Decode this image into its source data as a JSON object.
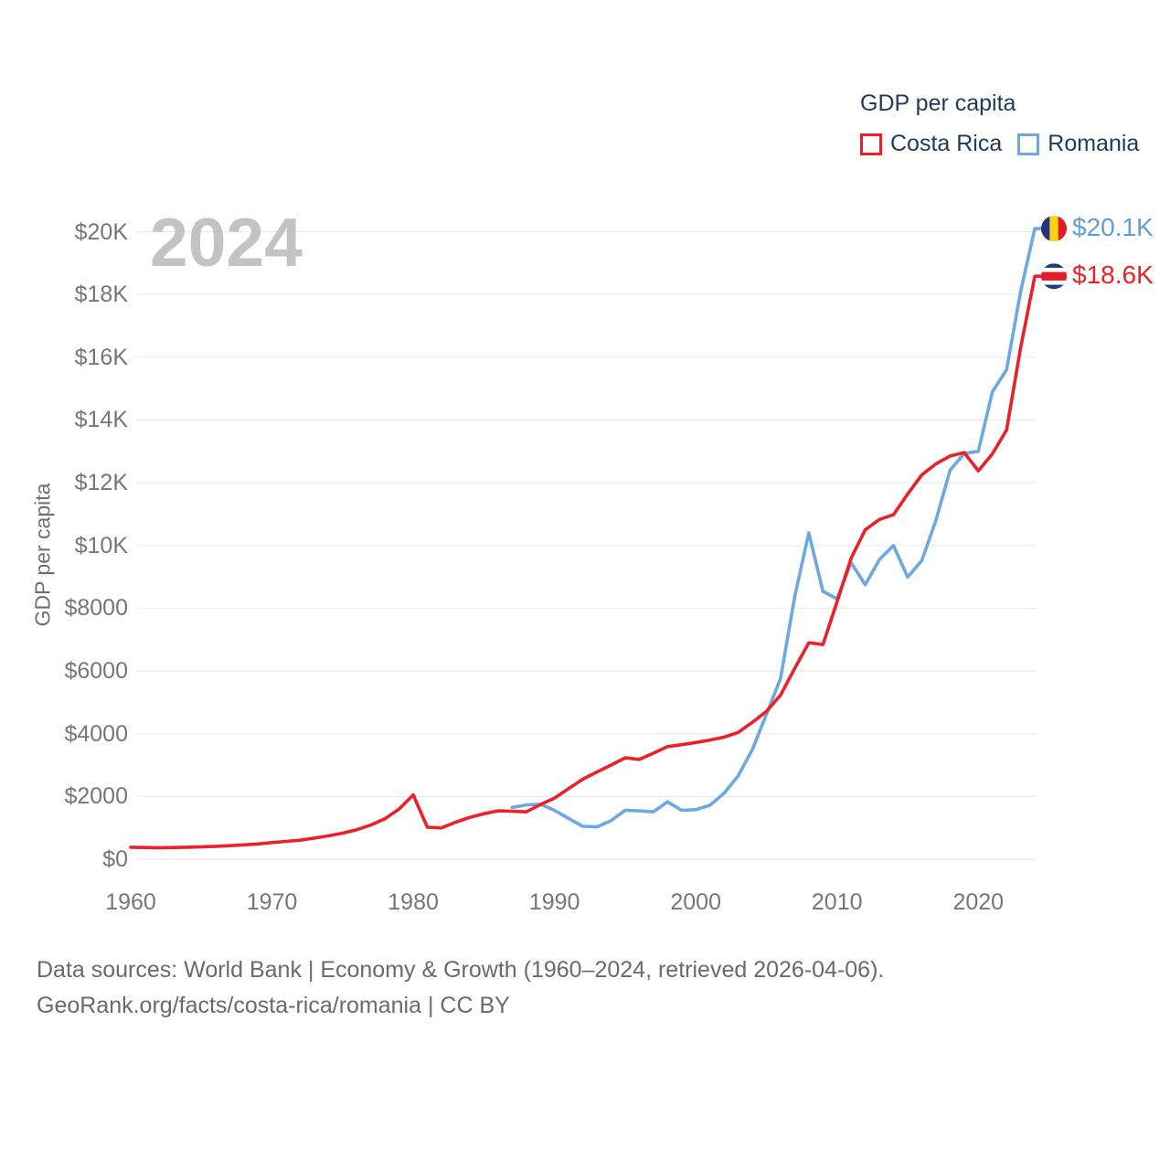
{
  "legend": {
    "title": "GDP per capita",
    "series": [
      {
        "label": "Costa Rica",
        "color": "#ec2028"
      },
      {
        "label": "Romania",
        "color": "#6fa8e1"
      }
    ]
  },
  "watermark": "2024",
  "y_axis": {
    "title": "GDP per capita",
    "ticks": [
      {
        "label": "$20K",
        "value": 20000
      },
      {
        "label": "$18K",
        "value": 18000
      },
      {
        "label": "$16K",
        "value": 16000
      },
      {
        "label": "$14K",
        "value": 14000
      },
      {
        "label": "$12K",
        "value": 12000
      },
      {
        "label": "$10K",
        "value": 10000
      },
      {
        "label": "$8000",
        "value": 8000
      },
      {
        "label": "$6000",
        "value": 6000
      },
      {
        "label": "$4000",
        "value": 4000
      },
      {
        "label": "$2000",
        "value": 2000
      },
      {
        "label": "$0",
        "value": 0
      }
    ]
  },
  "x_axis": {
    "ticks": [
      {
        "label": "1960",
        "value": 1960
      },
      {
        "label": "1970",
        "value": 1970
      },
      {
        "label": "1980",
        "value": 1980
      },
      {
        "label": "1990",
        "value": 1990
      },
      {
        "label": "2000",
        "value": 2000
      },
      {
        "label": "2010",
        "value": 2010
      },
      {
        "label": "2020",
        "value": 2020
      }
    ]
  },
  "end_labels": [
    {
      "series": "Romania",
      "value_label": "$20.1K",
      "value": 20100,
      "color": "#5f9edb",
      "flag": "romania-flag-icon",
      "flag_layout": "vertical-tricolor",
      "flag_colors": [
        "#26337c",
        "#fcd116",
        "#e01e26"
      ]
    },
    {
      "series": "Costa Rica",
      "value_label": "$18.6K",
      "value": 18580,
      "color": "#ec2028",
      "flag": "costa-rica-flag-icon",
      "flag_layout": "horizontal-quinto",
      "flag_colors": [
        "#203a80",
        "#ffffff",
        "#e01e26",
        "#ffffff",
        "#203a80"
      ]
    }
  ],
  "footer": {
    "line1": "Data sources: World Bank | Economy & Growth (1960–2024, retrieved 2026-04-06).",
    "line2": "GeoRank.org/facts/costa-rica/romania | CC BY"
  },
  "chart_data": {
    "type": "line",
    "title": "GDP per capita",
    "xlabel": "",
    "ylabel": "GDP per capita",
    "x_range": [
      1960,
      2024
    ],
    "ylim": [
      0,
      20000
    ],
    "grid": true,
    "legend_position": "top-right",
    "series": [
      {
        "name": "Costa Rica",
        "color": "#ec2028",
        "start_year": 1960,
        "end_value_label": "$18.6K",
        "values": [
          381,
          373,
          368,
          372,
          382,
          395,
          412,
          432,
          456,
          486,
          531,
          567,
          607,
          672,
          746,
          830,
          940,
          1090,
          1290,
          1600,
          2050,
          1020,
          1000,
          1180,
          1330,
          1450,
          1540,
          1530,
          1510,
          1740,
          1950,
          2250,
          2550,
          2780,
          3000,
          3230,
          3180,
          3380,
          3590,
          3650,
          3720,
          3800,
          3890,
          4040,
          4360,
          4710,
          5230,
          6080,
          6900,
          6840,
          8200,
          9600,
          10500,
          10830,
          10980,
          11640,
          12250,
          12600,
          12850,
          12960,
          12380,
          12920,
          13680,
          16310,
          18580
        ]
      },
      {
        "name": "Romania",
        "color": "#6fa8e1",
        "start_year": 1987,
        "end_value_label": "$20.1K",
        "values": [
          1650,
          1730,
          1750,
          1560,
          1300,
          1050,
          1030,
          1230,
          1560,
          1540,
          1510,
          1830,
          1560,
          1580,
          1720,
          2100,
          2650,
          3490,
          4620,
          5760,
          8360,
          10400,
          8540,
          8300,
          9450,
          8750,
          9550,
          10000,
          8990,
          9520,
          10800,
          12400,
          12930,
          13000,
          14900,
          15600,
          18100,
          20100
        ]
      }
    ]
  }
}
